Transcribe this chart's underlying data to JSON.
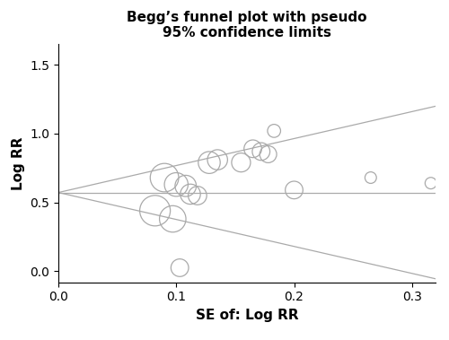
{
  "title": "Begg’s funnel plot with pseudo\n95% confidence limits",
  "xlabel": "SE of: Log RR",
  "ylabel": "Log RR",
  "xlim": [
    0,
    0.32
  ],
  "ylim": [
    -0.08,
    1.65
  ],
  "xticks": [
    0,
    0.1,
    0.2,
    0.3
  ],
  "yticks": [
    0,
    0.5,
    1,
    1.5
  ],
  "estimate": 0.572,
  "funnel_color": "#aaaaaa",
  "line_color": "#aaaaaa",
  "point_edge_color": "#aaaaaa",
  "points": [
    {
      "se": 0.082,
      "logrr": 0.44,
      "size": 600
    },
    {
      "se": 0.097,
      "logrr": 0.38,
      "size": 450
    },
    {
      "se": 0.09,
      "logrr": 0.68,
      "size": 520
    },
    {
      "se": 0.1,
      "logrr": 0.63,
      "size": 360
    },
    {
      "se": 0.108,
      "logrr": 0.62,
      "size": 290
    },
    {
      "se": 0.112,
      "logrr": 0.56,
      "size": 260
    },
    {
      "se": 0.118,
      "logrr": 0.55,
      "size": 220
    },
    {
      "se": 0.128,
      "logrr": 0.79,
      "size": 310
    },
    {
      "se": 0.135,
      "logrr": 0.81,
      "size": 260
    },
    {
      "se": 0.155,
      "logrr": 0.79,
      "size": 230
    },
    {
      "se": 0.165,
      "logrr": 0.89,
      "size": 200
    },
    {
      "se": 0.172,
      "logrr": 0.87,
      "size": 200
    },
    {
      "se": 0.178,
      "logrr": 0.85,
      "size": 185
    },
    {
      "se": 0.183,
      "logrr": 1.02,
      "size": 110
    },
    {
      "se": 0.2,
      "logrr": 0.59,
      "size": 200
    },
    {
      "se": 0.103,
      "logrr": 0.025,
      "size": 200
    },
    {
      "se": 0.265,
      "logrr": 0.68,
      "size": 85
    },
    {
      "se": 0.316,
      "logrr": 0.64,
      "size": 85
    }
  ]
}
